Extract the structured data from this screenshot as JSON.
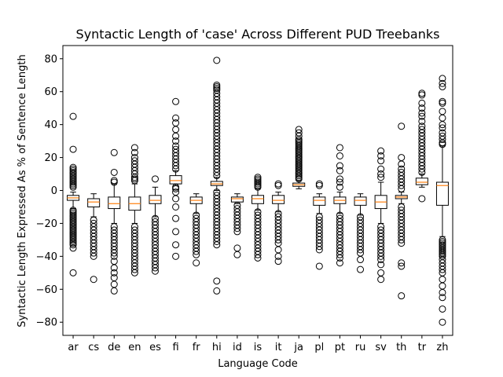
{
  "chart_data": {
    "type": "box",
    "title": "Syntactic Length of 'case' Across Different PUD Treebanks",
    "xlabel": "Language Code",
    "ylabel": "Syntactic Length Expressed As % of Sentence Length",
    "ylim": [
      -88,
      88
    ],
    "yticks": [
      -80,
      -60,
      -40,
      -20,
      0,
      20,
      40,
      60,
      80
    ],
    "grid": false,
    "colors": {
      "box": "#000000",
      "median": "#ff7f0e",
      "flier": "#000000"
    },
    "categories": [
      "ar",
      "cs",
      "de",
      "en",
      "es",
      "fi",
      "fr",
      "hi",
      "id",
      "is",
      "it",
      "ja",
      "pl",
      "pt",
      "ru",
      "sv",
      "th",
      "tr",
      "zh"
    ],
    "boxes": [
      {
        "label": "ar",
        "whislo": -11,
        "q1": -6,
        "med": -4.5,
        "q3": -3,
        "whishi": -1,
        "fliers_high": [
          45,
          25,
          14,
          13,
          12,
          11,
          10,
          9,
          8,
          7,
          6,
          5,
          4,
          3,
          2
        ],
        "fliers_low": [
          -12,
          -13,
          -14,
          -15,
          -16,
          -17,
          -18,
          -19,
          -20,
          -21,
          -22,
          -23,
          -24,
          -25,
          -26,
          -27,
          -28,
          -29,
          -30,
          -31,
          -32,
          -33,
          -35,
          -50
        ]
      },
      {
        "label": "cs",
        "whislo": -16,
        "q1": -10,
        "med": -7,
        "q3": -5,
        "whishi": -2,
        "fliers_high": [],
        "fliers_low": [
          -18,
          -20,
          -22,
          -24,
          -26,
          -28,
          -30,
          -32,
          -34,
          -36,
          -38,
          -40,
          -54
        ]
      },
      {
        "label": "de",
        "whislo": -20,
        "q1": -11,
        "med": -8,
        "q3": -4,
        "whishi": 4,
        "fliers_high": [
          23,
          11,
          6,
          5
        ],
        "fliers_low": [
          -22,
          -24,
          -26,
          -28,
          -30,
          -32,
          -34,
          -36,
          -38,
          -40,
          -43,
          -47,
          -50,
          -53,
          -57,
          -61
        ]
      },
      {
        "label": "en",
        "whislo": -20,
        "q1": -12,
        "med": -8,
        "q3": -4,
        "whishi": 4,
        "fliers_high": [
          26,
          23,
          20,
          18,
          16,
          14,
          12,
          10,
          8,
          7,
          6
        ],
        "fliers_low": [
          -22,
          -24,
          -26,
          -28,
          -30,
          -32,
          -34,
          -36,
          -38,
          -40,
          -42,
          -44,
          -46,
          -48,
          -50
        ]
      },
      {
        "label": "es",
        "whislo": -16,
        "q1": -8,
        "med": -6,
        "q3": -3,
        "whishi": 2,
        "fliers_high": [
          7
        ],
        "fliers_low": [
          -17,
          -19,
          -21,
          -23,
          -25,
          -27,
          -29,
          -31,
          -33,
          -35,
          -37,
          -39,
          -41,
          -43,
          -45,
          -47,
          -49
        ]
      },
      {
        "label": "fi",
        "whislo": 3,
        "q1": 4,
        "med": 6,
        "q3": 9,
        "whishi": 12,
        "fliers_high": [
          13,
          15,
          17,
          19,
          21,
          23,
          25,
          27,
          30,
          33,
          37,
          41,
          44,
          54
        ],
        "fliers_low": [
          2,
          1,
          -1,
          -5,
          -10,
          -17,
          -25,
          -33,
          -40
        ]
      },
      {
        "label": "fr",
        "whislo": -14,
        "q1": -8,
        "med": -6,
        "q3": -4,
        "whishi": -2,
        "fliers_high": [],
        "fliers_low": [
          -15,
          -17,
          -19,
          -21,
          -23,
          -25,
          -27,
          -29,
          -31,
          -33,
          -35,
          -37,
          -39,
          -44
        ]
      },
      {
        "label": "hi",
        "whislo": 0,
        "q1": 3,
        "med": 4,
        "q3": 5.5,
        "whishi": 8,
        "fliers_high": [
          9,
          11,
          13,
          15,
          17,
          19,
          21,
          23,
          25,
          27,
          29,
          31,
          33,
          35,
          37,
          39,
          41,
          43,
          45,
          47,
          49,
          51,
          53,
          55,
          57,
          59,
          61,
          62,
          63,
          64,
          79
        ],
        "fliers_low": [
          -1,
          -3,
          -5,
          -7,
          -9,
          -11,
          -13,
          -15,
          -17,
          -19,
          -21,
          -23,
          -25,
          -27,
          -29,
          -31,
          -33,
          -55,
          -61
        ]
      },
      {
        "label": "id",
        "whislo": -8,
        "q1": -7,
        "med": -5,
        "q3": -4,
        "whishi": -2,
        "fliers_high": [],
        "fliers_low": [
          -9,
          -11,
          -13,
          -15,
          -17,
          -19,
          -21,
          -23,
          -25,
          -35,
          -39
        ]
      },
      {
        "label": "is",
        "whislo": -12,
        "q1": -8,
        "med": -5,
        "q3": -3,
        "whishi": 1,
        "fliers_high": [
          2,
          3,
          4,
          5,
          6,
          7,
          8
        ],
        "fliers_low": [
          -13,
          -15,
          -17,
          -19,
          -21,
          -23,
          -25,
          -27,
          -29,
          -31,
          -33,
          -35,
          -37,
          -39,
          -41
        ]
      },
      {
        "label": "it",
        "whislo": -13,
        "q1": -8,
        "med": -6,
        "q3": -3,
        "whishi": -1,
        "fliers_high": [
          3,
          4
        ],
        "fliers_low": [
          -14,
          -16,
          -18,
          -20,
          -22,
          -24,
          -26,
          -28,
          -30,
          -32,
          -36,
          -40,
          -43
        ]
      },
      {
        "label": "ja",
        "whislo": 1,
        "q1": 2.5,
        "med": 3.5,
        "q3": 4.5,
        "whishi": 6,
        "fliers_high": [
          7,
          8,
          9,
          10,
          11,
          12,
          13,
          14,
          15,
          16,
          17,
          18,
          19,
          20,
          21,
          22,
          23,
          24,
          25,
          26,
          27,
          28,
          29,
          30,
          31,
          33,
          35,
          37
        ],
        "fliers_low": []
      },
      {
        "label": "pl",
        "whislo": -14,
        "q1": -9,
        "med": -6,
        "q3": -4,
        "whishi": -2,
        "fliers_high": [
          3,
          4
        ],
        "fliers_low": [
          -16,
          -18,
          -20,
          -22,
          -24,
          -26,
          -28,
          -30,
          -32,
          -34,
          -36,
          -46
        ]
      },
      {
        "label": "pt",
        "whislo": -14,
        "q1": -8,
        "med": -6,
        "q3": -4,
        "whishi": -1,
        "fliers_high": [
          2,
          5,
          7,
          12,
          15,
          21,
          26
        ],
        "fliers_low": [
          -15,
          -17,
          -19,
          -21,
          -23,
          -25,
          -27,
          -29,
          -31,
          -33,
          -35,
          -37,
          -39,
          -41,
          -44
        ]
      },
      {
        "label": "ru",
        "whislo": -15,
        "q1": -9,
        "med": -6,
        "q3": -4,
        "whishi": -2,
        "fliers_high": [],
        "fliers_low": [
          -16,
          -18,
          -20,
          -22,
          -24,
          -26,
          -28,
          -30,
          -32,
          -34,
          -36,
          -38,
          -42,
          -48
        ]
      },
      {
        "label": "sv",
        "whislo": -20,
        "q1": -11,
        "med": -7,
        "q3": -3,
        "whishi": 5,
        "fliers_high": [
          8,
          10,
          13,
          18,
          21,
          24
        ],
        "fliers_low": [
          -22,
          -24,
          -26,
          -28,
          -30,
          -32,
          -34,
          -36,
          -38,
          -40,
          -42,
          -45,
          -50,
          -54
        ]
      },
      {
        "label": "th",
        "whislo": -8,
        "q1": -5,
        "med": -4,
        "q3": -3,
        "whishi": -1,
        "fliers_high": [
          1,
          3,
          5,
          7,
          9,
          11,
          13,
          16,
          20,
          39
        ],
        "fliers_low": [
          -10,
          -12,
          -14,
          -16,
          -18,
          -20,
          -22,
          -24,
          -26,
          -28,
          -30,
          -32,
          -44,
          -46,
          -64
        ]
      },
      {
        "label": "tr",
        "whislo": 2,
        "q1": 3.5,
        "med": 5,
        "q3": 7.5,
        "whishi": 10,
        "fliers_high": [
          11,
          13,
          15,
          17,
          19,
          21,
          23,
          25,
          27,
          29,
          31,
          33,
          35,
          37,
          39,
          42,
          45,
          47,
          50,
          53,
          58,
          59
        ],
        "fliers_low": [
          -5
        ]
      },
      {
        "label": "zh",
        "whislo": -28,
        "q1": -9,
        "med": 3,
        "q3": 5,
        "whishi": 27,
        "fliers_high": [
          28,
          29,
          31,
          33,
          35,
          38,
          40,
          44,
          48,
          53,
          54,
          63,
          65,
          68
        ],
        "fliers_low": [
          -30,
          -31,
          -32,
          -33,
          -34,
          -35,
          -36,
          -37,
          -38,
          -39,
          -40,
          -42,
          -44,
          -46,
          -48,
          -50,
          -54,
          -58,
          -62,
          -65,
          -72,
          -80
        ]
      }
    ]
  }
}
